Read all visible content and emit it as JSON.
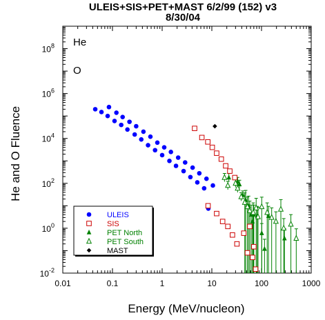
{
  "chart_data": {
    "type": "scatter",
    "title": "ULEIS+SIS+PET+MAST 6/2/99 (152) v3",
    "subtitle": "8/30/04",
    "xlabel": "Energy (MeV/nucleon)",
    "ylabel": "He and O Fluence",
    "xscale": "log",
    "yscale": "log",
    "xlim": [
      0.01,
      1000
    ],
    "ylim": [
      0.01,
      1000000000
    ],
    "x_ticks": [
      "0.01",
      "0.1",
      "1",
      "10",
      "100",
      "1000"
    ],
    "y_ticks": [
      {
        "value": 0.01,
        "base": "10",
        "exp": "-2"
      },
      {
        "value": 1,
        "base": "10",
        "exp": "0"
      },
      {
        "value": 100,
        "base": "10",
        "exp": "2"
      },
      {
        "value": 10000,
        "base": "10",
        "exp": "4"
      },
      {
        "value": 1000000,
        "base": "10",
        "exp": "6"
      },
      {
        "value": 100000000,
        "base": "10",
        "exp": "8"
      }
    ],
    "annotations": [
      "He",
      "O"
    ],
    "legend_position": "bottom-left",
    "series": [
      {
        "name": "ULEIS",
        "marker": "filled-circle",
        "color": "#0000ff",
        "points": [
          [
            0.085,
            250000
          ],
          [
            0.12,
            140000
          ],
          [
            0.16,
            90000
          ],
          [
            0.22,
            55000
          ],
          [
            0.3,
            35000
          ],
          [
            0.42,
            20000
          ],
          [
            0.58,
            12000
          ],
          [
            0.8,
            6500
          ],
          [
            1.1,
            4000
          ],
          [
            1.5,
            2500
          ],
          [
            2.1,
            1400
          ],
          [
            2.9,
            850
          ],
          [
            4.1,
            500
          ],
          [
            5.6,
            280
          ],
          [
            7.8,
            160
          ],
          [
            10.5,
            80
          ],
          [
            0.045,
            200000
          ],
          [
            0.06,
            150000
          ],
          [
            0.08,
            100000
          ],
          [
            0.11,
            60000
          ],
          [
            0.15,
            40000
          ],
          [
            0.2,
            25000
          ],
          [
            0.28,
            15000
          ],
          [
            0.38,
            9000
          ],
          [
            0.52,
            5000
          ],
          [
            0.72,
            3000
          ],
          [
            1.0,
            1800
          ],
          [
            1.4,
            1000
          ],
          [
            1.9,
            600
          ],
          [
            2.7,
            350
          ],
          [
            3.7,
            190
          ],
          [
            5.1,
            110
          ],
          [
            7.0,
            60
          ],
          [
            8.5,
            7.5
          ]
        ]
      },
      {
        "name": "SIS",
        "marker": "open-square",
        "color": "#cc0000",
        "points": [
          [
            4.5,
            28000
          ],
          [
            6.3,
            11000
          ],
          [
            8.3,
            7000
          ],
          [
            10.2,
            4000
          ],
          [
            12.5,
            2200
          ],
          [
            15.5,
            1200
          ],
          [
            19,
            600
          ],
          [
            23,
            350
          ],
          [
            29,
            180
          ],
          [
            8.4,
            10
          ],
          [
            12.5,
            4.5
          ],
          [
            16.5,
            2.0
          ],
          [
            21,
            1.2
          ],
          [
            26,
            0.5
          ],
          [
            32,
            0.2
          ],
          [
            44,
            0.6
          ],
          [
            52,
            0.08
          ],
          [
            58,
            1.2
          ],
          [
            66,
            0.05
          ],
          [
            70,
            0.15
          ],
          [
            76,
            0.015
          ]
        ]
      },
      {
        "name": "PET North",
        "marker": "filled-triangle",
        "color": "#008000",
        "points": [
          [
            22,
            180
          ],
          [
            33,
            120
          ],
          [
            36,
            90
          ],
          [
            42,
            30
          ],
          [
            48,
            18
          ],
          [
            55,
            10
          ],
          [
            62,
            4
          ],
          [
            66,
            2
          ],
          [
            70,
            4
          ],
          [
            82,
            3.5
          ],
          [
            101,
            0.6
          ],
          [
            115,
            0.12
          ],
          [
            138,
            3.5
          ],
          [
            290,
            0.35
          ]
        ]
      },
      {
        "name": "PET South",
        "marker": "open-triangle",
        "color": "#008000",
        "points": [
          [
            18,
            180
          ],
          [
            21,
            80
          ],
          [
            30,
            100
          ],
          [
            33,
            60
          ],
          [
            39,
            25
          ],
          [
            46,
            14
          ],
          [
            52,
            9
          ],
          [
            58,
            6
          ],
          [
            68,
            5
          ],
          [
            78,
            8
          ],
          [
            85,
            3.2
          ],
          [
            101,
            9
          ],
          [
            130,
            5
          ],
          [
            160,
            3
          ],
          [
            195,
            2
          ],
          [
            245,
            7
          ],
          [
            280,
            1.0
          ],
          [
            390,
            1.5
          ],
          [
            500,
            0.35
          ]
        ]
      },
      {
        "name": "MAST",
        "marker": "filled-diamond",
        "color": "#000000",
        "points": [
          [
            11.5,
            35000
          ]
        ]
      }
    ]
  }
}
